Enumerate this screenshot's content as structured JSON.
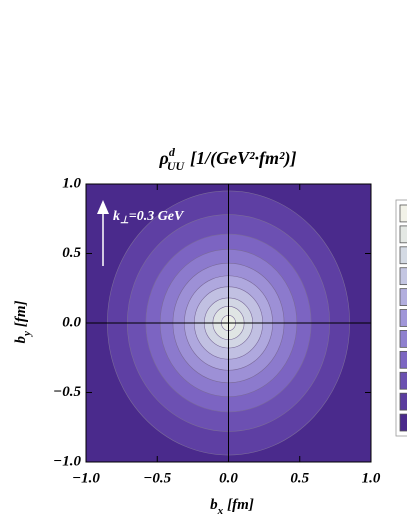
{
  "chart_data": {
    "type": "contour",
    "title": {
      "symbol": "ρ",
      "superscript": "d",
      "subscript": "UU",
      "units": "[1/(GeV²·fm²)]"
    },
    "xlabel": {
      "symbol": "b",
      "subscript": "x",
      "units": "[fm]"
    },
    "ylabel": {
      "symbol": "b",
      "subscript": "y",
      "units": "[fm]"
    },
    "annotation": {
      "symbol": "k",
      "subscript": "⊥",
      "text": "=0.3 GeV"
    },
    "xlim": [
      -1,
      1
    ],
    "ylim": [
      -1,
      1
    ],
    "xticks": [
      {
        "value": -1,
        "label": "−1.0"
      },
      {
        "value": -0.5,
        "label": "−0.5"
      },
      {
        "value": 0,
        "label": "0.0"
      },
      {
        "value": 0.5,
        "label": "0.5"
      },
      {
        "value": 1,
        "label": "1.0"
      }
    ],
    "yticks": [
      {
        "value": -1,
        "label": "−1.0"
      },
      {
        "value": -0.5,
        "label": "−0.5"
      },
      {
        "value": 0,
        "label": "0.0"
      },
      {
        "value": 0.5,
        "label": "0.5"
      },
      {
        "value": 1,
        "label": "1.0"
      }
    ],
    "background_color": "#4a2a8c",
    "contours": [
      {
        "color": "#5e3fa3",
        "rx": 0.85,
        "ry": 0.95
      },
      {
        "color": "#6c50b2",
        "rx": 0.71,
        "ry": 0.78
      },
      {
        "color": "#7c64c2",
        "rx": 0.58,
        "ry": 0.64
      },
      {
        "color": "#8c7acd",
        "rx": 0.48,
        "ry": 0.53
      },
      {
        "color": "#9d90d6",
        "rx": 0.39,
        "ry": 0.43
      },
      {
        "color": "#afa8de",
        "rx": 0.31,
        "ry": 0.34
      },
      {
        "color": "#c1c0e2",
        "rx": 0.24,
        "ry": 0.26
      },
      {
        "color": "#d2d6e4",
        "rx": 0.17,
        "ry": 0.18
      },
      {
        "color": "#e0e5e4",
        "rx": 0.11,
        "ry": 0.12
      },
      {
        "color": "#ecefe6",
        "rx": 0.05,
        "ry": 0.055
      }
    ],
    "legend_colors": [
      "#f2f2e8",
      "#e4e8e4",
      "#d4dae4",
      "#c4c6e2",
      "#b2aede",
      "#a096d8",
      "#8e80ce",
      "#7c66c2",
      "#6a50b0",
      "#5a3c9e",
      "#4a2a8c"
    ]
  }
}
